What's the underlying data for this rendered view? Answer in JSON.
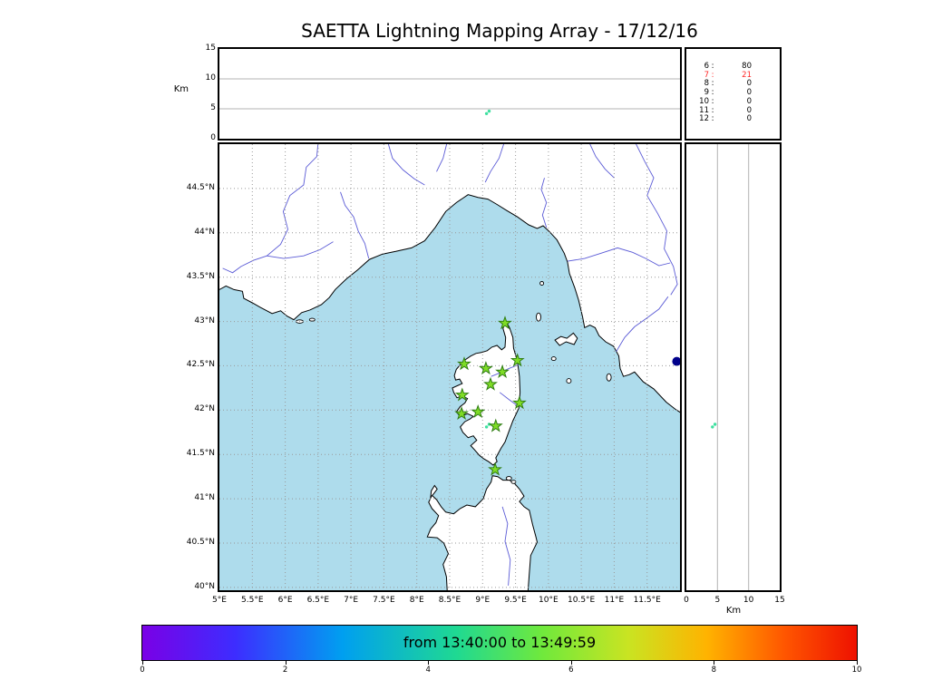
{
  "title": "SAETTA Lightning Mapping Array - 17/12/16",
  "axes": {
    "altitude_label": "Km",
    "altitude_ticks": [
      "0",
      "5",
      "10",
      "15"
    ],
    "right_altitude_label": "Km",
    "right_altitude_ticks": [
      "0",
      "5",
      "10",
      "15"
    ],
    "lat_ticks": [
      "44.5°N",
      "44°N",
      "43.5°N",
      "43°N",
      "42.5°N",
      "42°N",
      "41.5°N",
      "41°N",
      "40.5°N",
      "40°N"
    ],
    "lon_ticks": [
      "5°E",
      "5.5°E",
      "6°E",
      "6.5°E",
      "7°E",
      "7.5°E",
      "8°E",
      "8.5°E",
      "9°E",
      "9.5°E",
      "10°E",
      "10.5°E",
      "11°E",
      "11.5°E"
    ]
  },
  "colorbar": {
    "label": "from 13:40:00 to 13:49:59",
    "ticks": [
      "0",
      "2",
      "4",
      "6",
      "8",
      "10"
    ]
  },
  "colors": {
    "sea": "#aedcec",
    "land": "#ffffff",
    "coastline": "#000000",
    "river": "#5b5bd6",
    "grid": "#999999",
    "panel_grid": "#b3b3b3",
    "station_fill": "#7fdc26",
    "station_edge": "#2f7d12",
    "source": "#3fe0a0",
    "lake": "#00008b",
    "highlight": "#ff2a2a",
    "colorbar_stops": [
      "#7a00e6 0%",
      "#3d2dff 13%",
      "#009ff0 28%",
      "#1fd992 44%",
      "#70e93c 56%",
      "#c9e422 68%",
      "#ffb300 79%",
      "#ff5500 90%",
      "#ee1100 100%"
    ]
  },
  "chart_data": {
    "type": "scatter",
    "title": "SAETTA Lightning Mapping Array - 17/12/16",
    "panels": {
      "map": {
        "lon_range_deg_e": [
          5,
          12
        ],
        "lat_range_deg_n": [
          39.97,
          45.0
        ],
        "grid_step_deg": 0.5,
        "grid": "dotted"
      },
      "top_altitude_vs_longitude": {
        "y_label": "Km",
        "y_range_km": [
          0,
          15
        ],
        "y_ticks": [
          0,
          5,
          10,
          15
        ]
      },
      "right_altitude_vs_latitude": {
        "x_label": "Km",
        "x_range_km": [
          0,
          15
        ],
        "x_ticks": [
          0,
          5,
          10,
          15
        ]
      }
    },
    "lma_stations_lon_lat": [
      [
        9.34,
        42.98
      ],
      [
        8.72,
        42.52
      ],
      [
        9.05,
        42.47
      ],
      [
        9.3,
        42.43
      ],
      [
        9.53,
        42.56
      ],
      [
        8.69,
        42.17
      ],
      [
        9.12,
        42.29
      ],
      [
        9.56,
        42.08
      ],
      [
        8.68,
        41.96
      ],
      [
        8.93,
        41.98
      ],
      [
        9.2,
        41.82
      ],
      [
        9.19,
        41.33
      ]
    ],
    "lightning_sources": [
      {
        "lon": 9.06,
        "lat": 41.81,
        "alt_km": 4.2
      },
      {
        "lon": 9.1,
        "lat": 41.84,
        "alt_km": 4.6
      }
    ],
    "station_solution_counts": [
      {
        "min_stations": 6,
        "count": 80,
        "highlight": false
      },
      {
        "min_stations": 7,
        "count": 21,
        "highlight": true
      },
      {
        "min_stations": 8,
        "count": 0,
        "highlight": false
      },
      {
        "min_stations": 9,
        "count": 0,
        "highlight": false
      },
      {
        "min_stations": 10,
        "count": 0,
        "highlight": false
      },
      {
        "min_stations": 11,
        "count": 0,
        "highlight": false
      },
      {
        "min_stations": 12,
        "count": 0,
        "highlight": false
      }
    ],
    "colorbar": {
      "label": "from 13:40:00 to 13:49:59",
      "range": [
        0,
        10
      ],
      "ticks": [
        0,
        2,
        4,
        6,
        8,
        10
      ],
      "colormap": "rainbow"
    }
  }
}
